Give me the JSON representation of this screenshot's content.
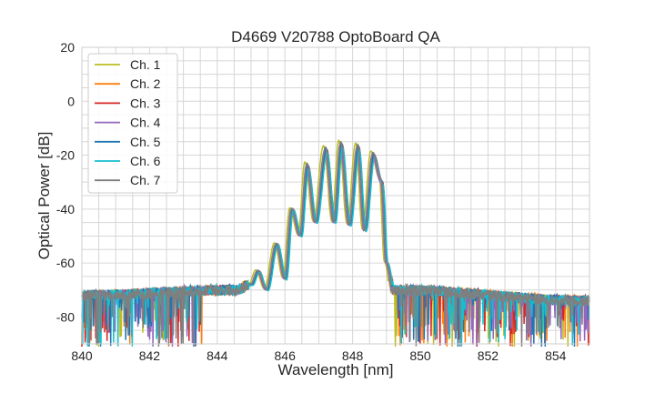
{
  "chart_data": {
    "type": "line",
    "title": "D4669 V20788 OptoBoard QA",
    "xlabel": "Wavelength [nm]",
    "ylabel": "Optical Power [dB]",
    "xlim": [
      840,
      855
    ],
    "ylim": [
      -90,
      20
    ],
    "xticks": [
      840,
      842,
      844,
      846,
      848,
      850,
      852,
      854
    ],
    "yticks": [
      -80,
      -60,
      -40,
      -20,
      0,
      20
    ],
    "grid": true,
    "legend": "top-left",
    "noise_floor_db": -72,
    "profile": {
      "x": [
        840,
        844.5,
        845.0,
        845.2,
        845.45,
        845.75,
        846.0,
        846.2,
        846.45,
        846.65,
        846.9,
        847.2,
        847.45,
        847.65,
        847.9,
        848.15,
        848.35,
        848.6,
        848.85,
        849.0,
        849.2,
        855
      ],
      "y": [
        -72,
        -70,
        -68,
        -63,
        -70,
        -53,
        -66,
        -40,
        -50,
        -24,
        -45,
        -18,
        -45,
        -16,
        -46,
        -17,
        -48,
        -20,
        -30,
        -60,
        -70,
        -74
      ]
    },
    "series": [
      {
        "name": "Ch. 1",
        "color": "#bcbd22",
        "shift_nm": -0.06,
        "offset_db": 1.5
      },
      {
        "name": "Ch. 2",
        "color": "#ff7f0e",
        "shift_nm": 0.03,
        "offset_db": -0.5
      },
      {
        "name": "Ch. 3",
        "color": "#d62728",
        "shift_nm": 0.04,
        "offset_db": 0
      },
      {
        "name": "Ch. 4",
        "color": "#9467bd",
        "shift_nm": -0.02,
        "offset_db": 0
      },
      {
        "name": "Ch. 5",
        "color": "#1f77b4",
        "shift_nm": 0.02,
        "offset_db": 0.5
      },
      {
        "name": "Ch. 6",
        "color": "#17becf",
        "shift_nm": 0.05,
        "offset_db": -1
      },
      {
        "name": "Ch. 7",
        "color": "#7f7f7f",
        "shift_nm": 0,
        "offset_db": 1
      }
    ]
  }
}
